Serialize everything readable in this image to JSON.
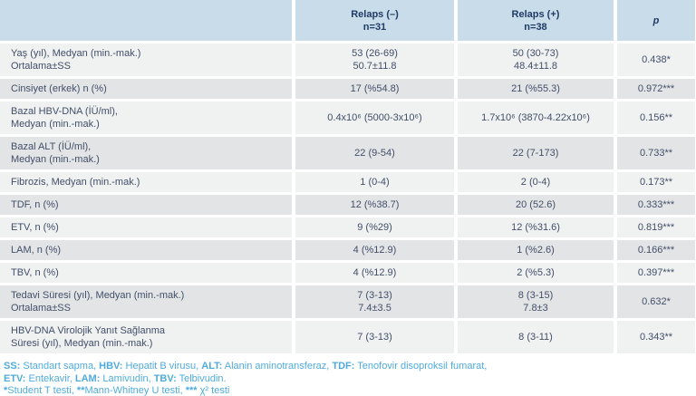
{
  "colors": {
    "header_bg": "#c9dcea",
    "header_text": "#1f3c64",
    "text": "#414f69",
    "row_light": "#f0f1f1",
    "row_dark": "#e3e4e6",
    "footnote": "#4fabdb"
  },
  "table": {
    "header": {
      "empty": "",
      "relaps_neg": [
        "Relaps (–)",
        "n=31"
      ],
      "relaps_pos": [
        "Relaps (+)",
        "n=38"
      ],
      "p": "p"
    },
    "rows": [
      {
        "label": [
          "Yaş (yıl), Medyan (min.-mak.)",
          "Ortalama±SS"
        ],
        "neg": [
          "53 (26-69)",
          "50.7±11.8"
        ],
        "pos": [
          "50 (30-73)",
          "48.4±11.8"
        ],
        "p": "0.438*"
      },
      {
        "label": [
          "Cinsiyet (erkek) n (%)"
        ],
        "neg": [
          "17 (%54.8)"
        ],
        "pos": [
          "21 (%55.3)"
        ],
        "p": "0.972***"
      },
      {
        "label": [
          "Bazal HBV-DNA (İÜ/ml),",
          "Medyan (min.-mak.)"
        ],
        "neg": [
          "0.4x10⁶ (5000-3x10⁶)"
        ],
        "pos": [
          "1.7x10⁶ (3870-4.22x10⁶)"
        ],
        "p": "0.156**"
      },
      {
        "label": [
          "Bazal ALT (İÜ/ml),",
          "Medyan (min.-mak.)"
        ],
        "neg": [
          "22 (9-54)"
        ],
        "pos": [
          "22 (7-173)"
        ],
        "p": "0.733**"
      },
      {
        "label": [
          "Fibrozis, Medyan (min.-mak.)"
        ],
        "neg": [
          "1 (0-4)"
        ],
        "pos": [
          "2 (0-4)"
        ],
        "p": "0.173**"
      },
      {
        "label": [
          "TDF, n (%)"
        ],
        "neg": [
          "12 (%38.7)"
        ],
        "pos": [
          "20 (52.6)"
        ],
        "p": "0.333***"
      },
      {
        "label": [
          "ETV, n (%)"
        ],
        "neg": [
          "9 (%29)"
        ],
        "pos": [
          "12 (%31.6)"
        ],
        "p": "0.819***"
      },
      {
        "label": [
          "LAM, n (%)"
        ],
        "neg": [
          "4 (%12.9)"
        ],
        "pos": [
          "1 (%2.6)"
        ],
        "p": "0.166***"
      },
      {
        "label": [
          "TBV, n (%)"
        ],
        "neg": [
          "4 (%12.9)"
        ],
        "pos": [
          "2 (%5.3)"
        ],
        "p": "0.397***"
      },
      {
        "label": [
          "Tedavi Süresi (yıl), Medyan (min.-mak.)",
          "Ortalama±SS"
        ],
        "neg": [
          "7 (3-13)",
          "7.4±3.5"
        ],
        "pos": [
          "8 (3-15)",
          "7.8±3"
        ],
        "p": "0.632*"
      },
      {
        "label": [
          "HBV-DNA Virolojik Yanıt Sağlanma",
          "Süresi (yıl), Medyan (min.-mak.)"
        ],
        "neg": [
          "7 (3-13)"
        ],
        "pos": [
          "8 (3-11)"
        ],
        "p": "0.343**"
      }
    ]
  },
  "footnotes": [
    [
      {
        "b": true,
        "t": "SS:"
      },
      {
        "b": false,
        "t": " Standart sapma, "
      },
      {
        "b": true,
        "t": "HBV:"
      },
      {
        "b": false,
        "t": " Hepatit B virusu, "
      },
      {
        "b": true,
        "t": "ALT:"
      },
      {
        "b": false,
        "t": " Alanin aminotransferaz, "
      },
      {
        "b": true,
        "t": "TDF:"
      },
      {
        "b": false,
        "t": " Tenofovir disoproksil fumarat,"
      }
    ],
    [
      {
        "b": true,
        "t": "ETV:"
      },
      {
        "b": false,
        "t": " Entekavir, "
      },
      {
        "b": true,
        "t": "LAM:"
      },
      {
        "b": false,
        "t": " Lamivudin, "
      },
      {
        "b": true,
        "t": "TBV:"
      },
      {
        "b": false,
        "t": " Telbivudin."
      }
    ],
    [
      {
        "b": true,
        "t": "*"
      },
      {
        "b": false,
        "t": "Student T testi, "
      },
      {
        "b": true,
        "t": "**"
      },
      {
        "b": false,
        "t": "Mann-Whitney U testi, "
      },
      {
        "b": true,
        "t": "*** "
      },
      {
        "b": false,
        "t": "χ² testi"
      }
    ]
  ]
}
